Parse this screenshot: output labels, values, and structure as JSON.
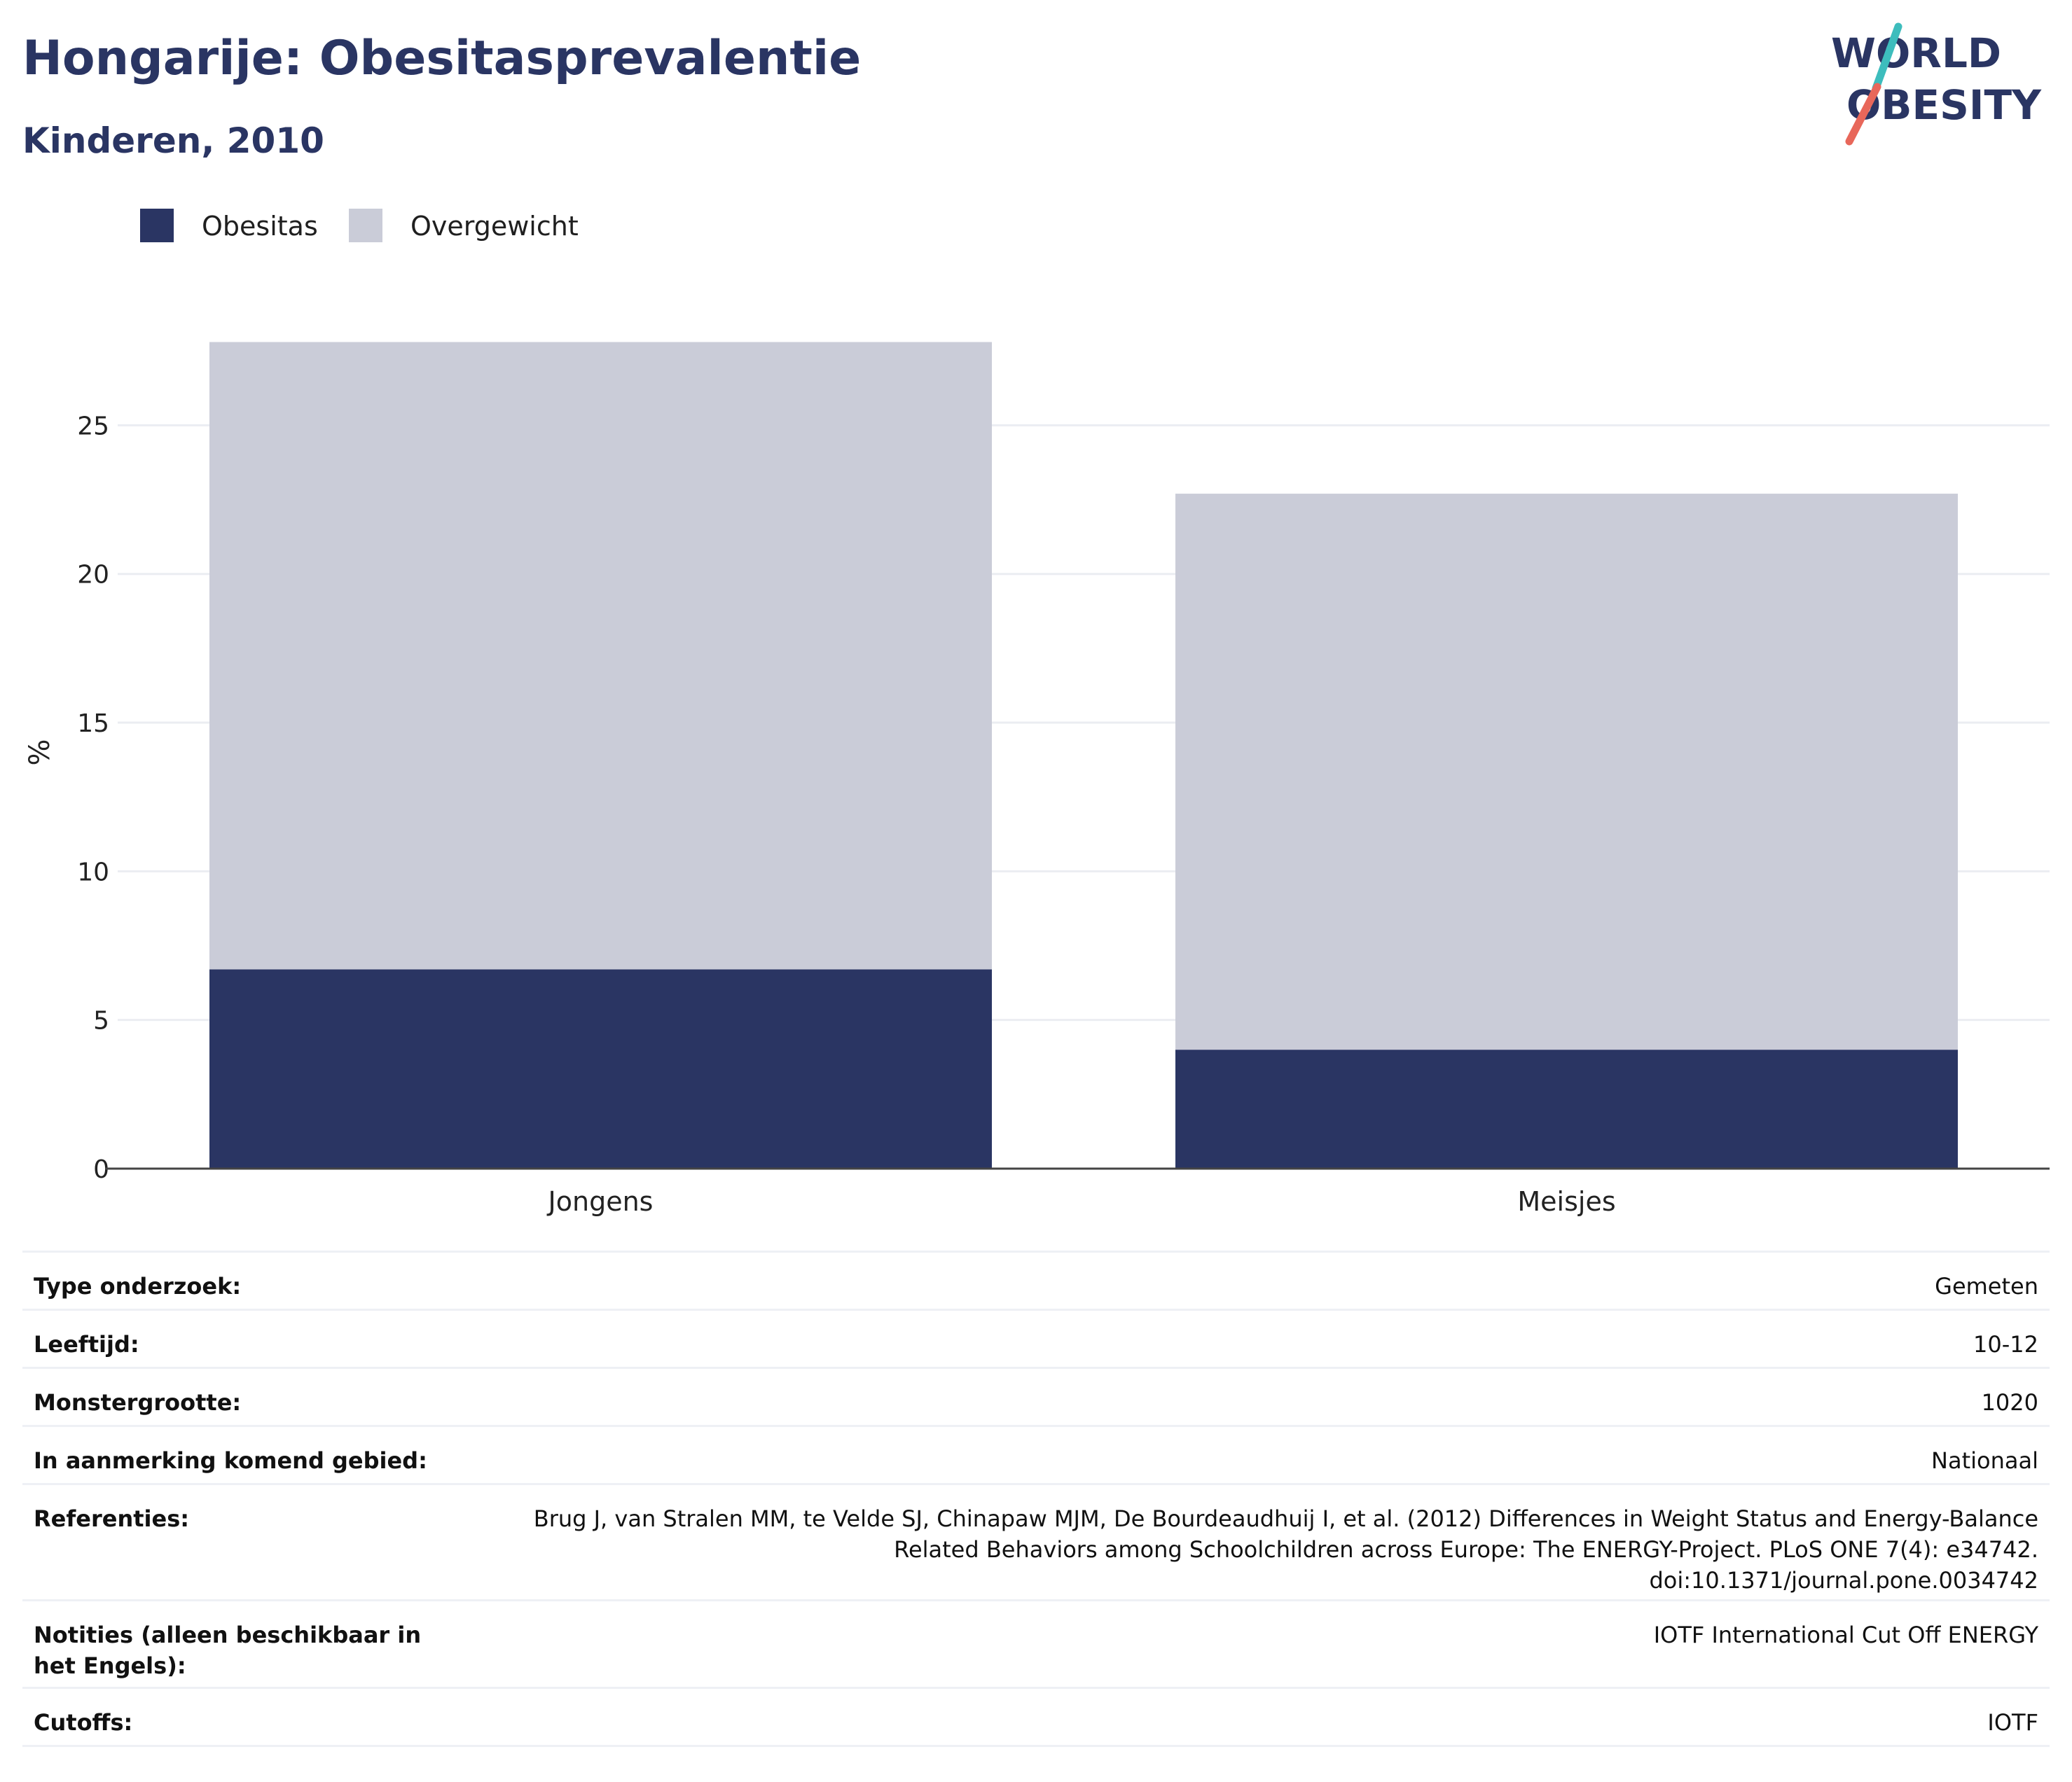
{
  "header": {
    "title": "Hongarije: Obesitasprevalentie",
    "subtitle": "Kinderen, 2010"
  },
  "logo": {
    "line1": "WORLD",
    "line2": "OBESITY",
    "colors": {
      "text": "#2a3563",
      "stroke_red": "#e8675a",
      "stroke_teal": "#3dbdbd"
    }
  },
  "chart_data": {
    "type": "bar",
    "stacked": true,
    "categories": [
      "Jongens",
      "Meisjes"
    ],
    "series": [
      {
        "name": "Obesitas",
        "values": [
          6.7,
          4.0
        ],
        "color": "#2a3563"
      },
      {
        "name": "Overgewicht",
        "values": [
          21.1,
          18.7
        ],
        "color": "#caccd8"
      }
    ],
    "ylabel": "%",
    "ylim": [
      0,
      28
    ],
    "yticks": [
      0,
      5,
      10,
      15,
      20,
      25
    ],
    "grid": true,
    "legend_position": "top-left"
  },
  "details": [
    {
      "label": "Type onderzoek:",
      "value": "Gemeten"
    },
    {
      "label": "Leeftijd:",
      "value": "10-12"
    },
    {
      "label": "Monstergrootte:",
      "value": "1020"
    },
    {
      "label": "In aanmerking komend gebied:",
      "value": "Nationaal"
    },
    {
      "label": "Referenties:",
      "value": "Brug J, van Stralen MM, te Velde SJ, Chinapaw MJM, De Bourdeaudhuij I, et al. (2012) Differences in Weight Status and Energy-Balance Related Behaviors among Schoolchildren across Europe: The ENERGY-Project. PLoS ONE 7(4): e34742. doi:10.1371/journal.pone.0034742"
    },
    {
      "label": "Notities (alleen beschikbaar in het Engels):",
      "value": "IOTF International Cut Off ENERGY"
    },
    {
      "label": "Cutoffs:",
      "value": "IOTF"
    }
  ]
}
